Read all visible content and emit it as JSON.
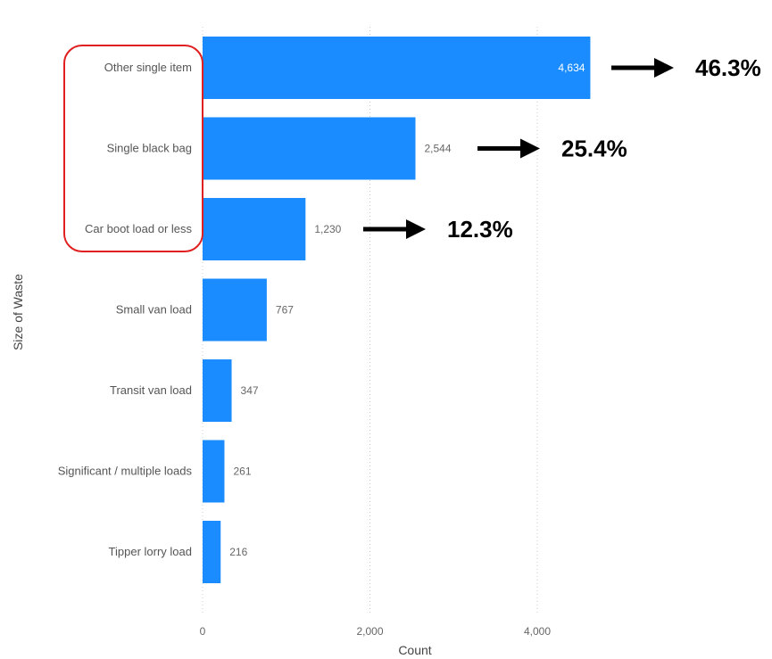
{
  "chart_data": {
    "type": "bar",
    "orientation": "horizontal",
    "categories": [
      "Other single item",
      "Single black bag",
      "Car boot load or less",
      "Small van load",
      "Transit van load",
      "Significant / multiple loads",
      "Tipper lorry load"
    ],
    "values": [
      4634,
      2544,
      1230,
      767,
      347,
      261,
      216
    ],
    "value_labels": [
      "4,634",
      "2,544",
      "1,230",
      "767",
      "347",
      "261",
      "216"
    ],
    "xlabel": "Count",
    "ylabel": "Size of Waste",
    "xlim": [
      0,
      4800
    ],
    "xticks": [
      0,
      2000,
      4000
    ],
    "xtick_labels": [
      "0",
      "2,000",
      "4,000"
    ],
    "grid": "vertical dotted",
    "bar_color": "#1A8CFF",
    "annotations": [
      {
        "category": "Other single item",
        "text": "46.3%"
      },
      {
        "category": "Single black bag",
        "text": "25.4%"
      },
      {
        "category": "Car boot load or less",
        "text": "12.3%"
      }
    ],
    "highlight": {
      "type": "rounded-rectangle",
      "color": "#E02020",
      "categories": [
        "Other single item",
        "Single black bag",
        "Car boot load or less"
      ]
    }
  }
}
